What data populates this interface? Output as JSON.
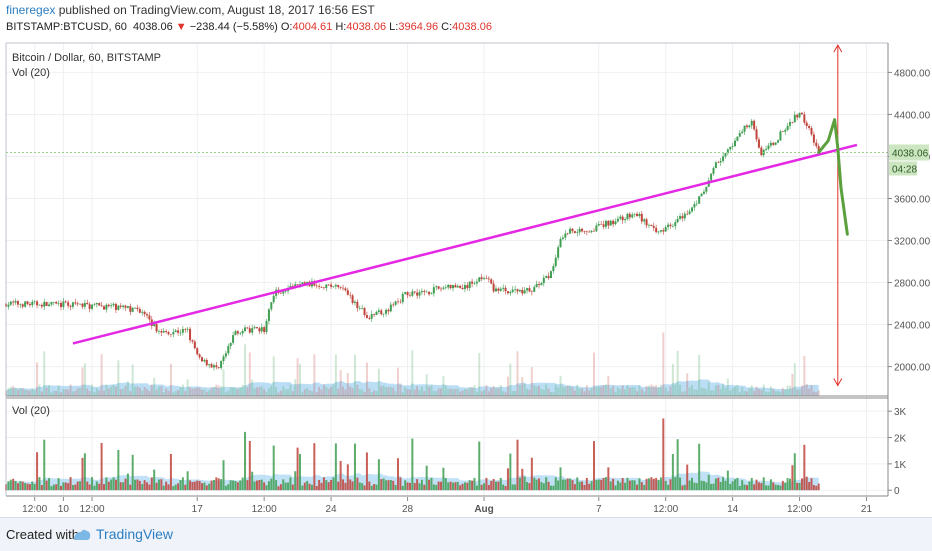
{
  "header": {
    "author": "fineregex",
    "published": " published on TradingView.com, August 18, 2017 16:56 EST",
    "symbol": "BITSTAMP:BTCUSD, 60",
    "last": "4038.06",
    "change_arrow": "▼",
    "change": "−238.44 (−5.58%)",
    "o_label": "O:",
    "o_val": "4004.61",
    "h_label": "H:",
    "h_val": "4038.06",
    "l_label": "L:",
    "l_val": "3964.96",
    "c_label": "C:",
    "c_val": "4038.06"
  },
  "footer": {
    "created_with": "Created with",
    "brand": "TradingView"
  },
  "chart_data": {
    "type": "line",
    "title": "Bitcoin / Dollar, 60, BITSTAMP",
    "main_subtitle": "Vol (20)",
    "volume_pane_title": "Vol (20)",
    "price_axis_ticks": [
      "4800.00",
      "4400.00",
      "4000.00",
      "3600.00",
      "3200.00",
      "2800.00",
      "2400.00",
      "2000.00"
    ],
    "price_ticks_values": [
      4800,
      4400,
      4000,
      3600,
      3200,
      2800,
      2400,
      2000
    ],
    "price_range": [
      1720,
      5080
    ],
    "volume_axis_ticks": [
      "3K",
      "2K",
      "1K",
      "0"
    ],
    "volume_ticks_values": [
      3000,
      2000,
      1000,
      0
    ],
    "volume_range": [
      -220,
      3500
    ],
    "x_axis_ticks": [
      "12:00",
      "10",
      "12:00",
      "17",
      "12:00",
      "24",
      "28",
      "Aug",
      "7",
      "12:00",
      "14",
      "12:00",
      "21"
    ],
    "x_tick_bold_index": 7,
    "last_price_label": "4038.06",
    "countdown_label": "04:28",
    "price_path": {
      "x": [
        "10 Jul 00:00",
        "12 Jul 12:00",
        "14 Jul 00:00",
        "15 Jul 00:00",
        "16 Jul 12:00",
        "17 Jul 00:00",
        "18 Jul 00:00",
        "18 Jul 12:00",
        "19 Jul 00:00",
        "20 Jul 12:00",
        "21 Jul 00:00",
        "22 Jul 12:00",
        "23 Jul 12:00",
        "24 Jul 12:00",
        "25 Jul 12:00",
        "26 Jul 00:00",
        "27 Jul 00:00",
        "28 Jul 00:00",
        "29 Jul 00:00",
        "30 Jul 00:00",
        "31 Jul 00:00",
        "1 Aug 00:00",
        "1 Aug 12:00",
        "2 Aug 12:00",
        "3 Aug 12:00",
        "4 Aug 12:00",
        "5 Aug 00:00",
        "5 Aug 12:00",
        "6 Aug 12:00",
        "8 Aug 00:00",
        "9 Aug 00:00",
        "10 Aug 00:00",
        "11 Aug 00:00",
        "11 Aug 12:00",
        "12 Aug 12:00",
        "13 Aug 00:00",
        "14 Aug 00:00",
        "14 Aug 12:00",
        "15 Aug 00:00",
        "15 Aug 12:00",
        "16 Aug 00:00",
        "17 Aug 00:00",
        "17 Aug 12:00",
        "18 Aug 00:00",
        "18 Aug 12:00"
      ],
      "y": [
        2590,
        2570,
        2540,
        2330,
        2340,
        2100,
        1980,
        2120,
        2340,
        2350,
        2700,
        2790,
        2780,
        2750,
        2560,
        2470,
        2550,
        2700,
        2710,
        2760,
        2750,
        2870,
        2740,
        2720,
        2730,
        2880,
        3230,
        3300,
        3300,
        3400,
        3450,
        3270,
        3380,
        3450,
        3650,
        3900,
        4100,
        4250,
        4350,
        4020,
        4100,
        4320,
        4420,
        4260,
        4038
      ]
    },
    "projection": {
      "x": [
        "18 Aug 12:00",
        "19 Aug 00:00",
        "19 Aug 08:00",
        "19 Aug 12:00",
        "19 Aug 16:00",
        "20 Aug 00:00"
      ],
      "y": [
        4038,
        4150,
        4350,
        4080,
        3700,
        3260
      ]
    },
    "trendline": {
      "x": [
        "10 Jul 12:00",
        "20 Aug 12:00"
      ],
      "y": [
        2220,
        4110
      ]
    },
    "range_arrow": {
      "x": "19 Aug 12:00",
      "y": [
        1820,
        5060
      ]
    },
    "colors": {
      "up": "#3f9e52",
      "down": "#c0443b",
      "trendline": "#e428e4",
      "projection": "#5aa03c",
      "arrow": "#e0332b",
      "volume_ma": "#8ec8ee",
      "last_price_badge": "#cde6c2",
      "grid": "#eef0f3",
      "axis": "#555555"
    }
  }
}
